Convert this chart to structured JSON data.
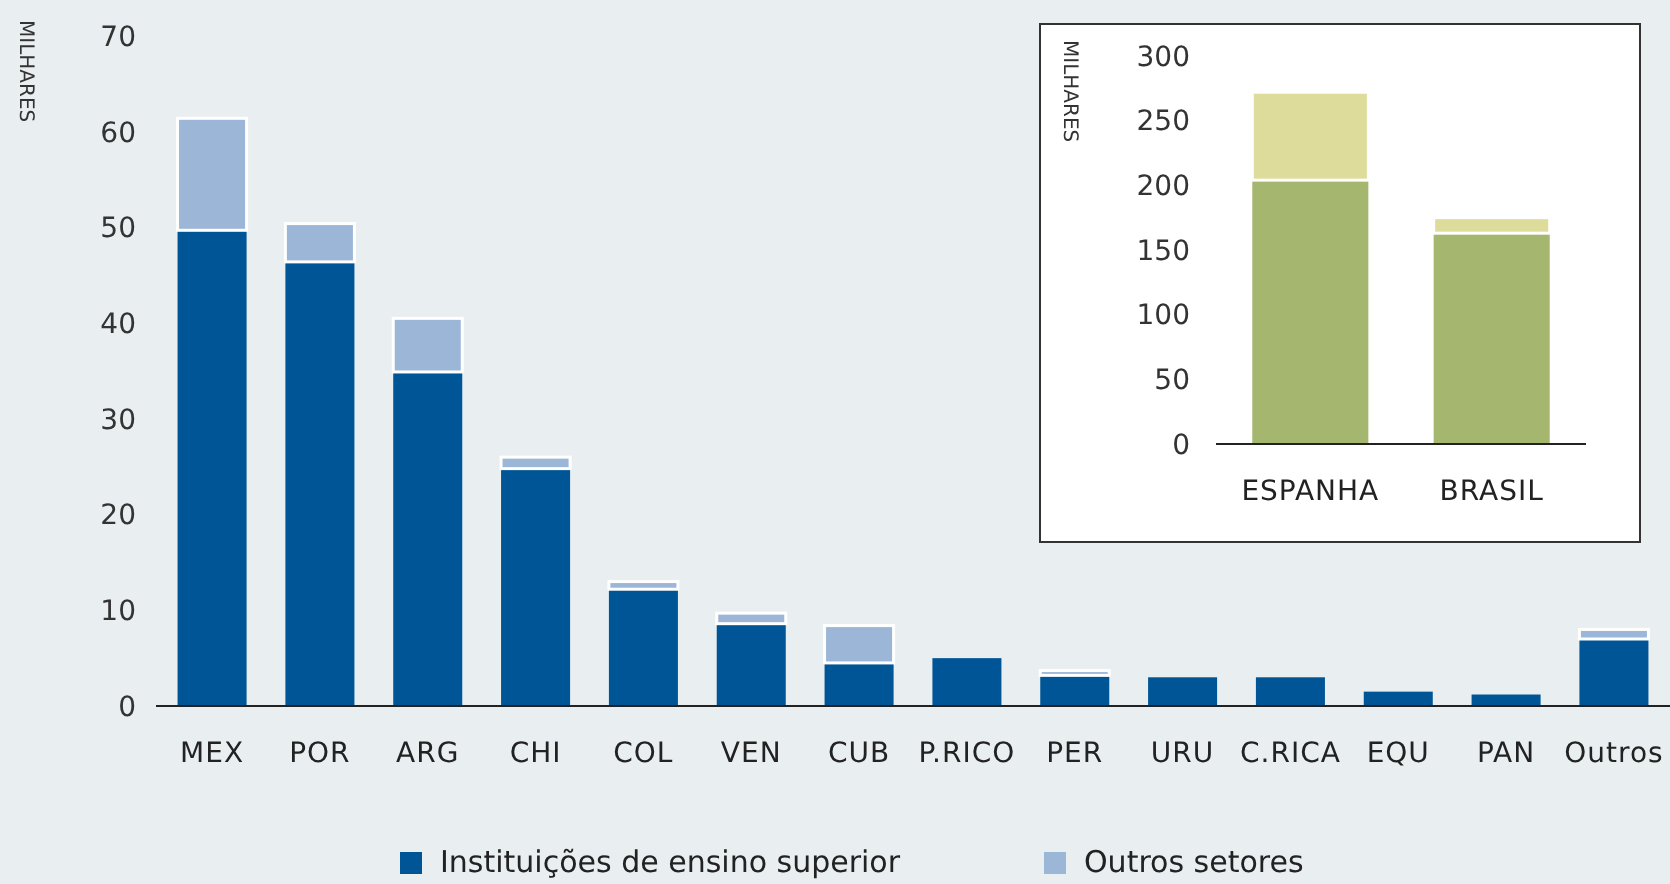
{
  "chart_data": [
    {
      "type": "bar",
      "stacked": true,
      "ylabel": "MILHARES",
      "categories": [
        "MEX",
        "POR",
        "ARG",
        "CHI",
        "COL",
        "VEN",
        "CUB",
        "P.RICO",
        "PER",
        "URU",
        "C.RICA",
        "EQU",
        "PAN",
        "Outros"
      ],
      "series": [
        {
          "name": "Instituições de ensino superior",
          "color": "#005596",
          "values": [
            49.7,
            46.4,
            34.9,
            24.8,
            12.2,
            8.6,
            4.5,
            5,
            3.2,
            3,
            3,
            1.5,
            1.2,
            7
          ]
        },
        {
          "name": "Outros setores",
          "color": "#9bb6d6",
          "values": [
            11.7,
            4,
            5.6,
            1.2,
            0.8,
            1.1,
            3.9,
            0,
            0.5,
            0,
            0,
            0,
            0,
            1
          ]
        }
      ],
      "ylim": [
        0,
        70
      ],
      "yticks": [
        0,
        10,
        20,
        30,
        40,
        50,
        60,
        70
      ],
      "legend": "bottom",
      "grid": false
    },
    {
      "type": "bar",
      "stacked": true,
      "ylabel": "MILHARES",
      "categories": [
        "ESPANHA",
        "BRASIL"
      ],
      "series": [
        {
          "color": "#a5b66f",
          "values": [
            204,
            163
          ]
        },
        {
          "color": "#dedc9a",
          "values": [
            68,
            12
          ]
        }
      ],
      "ylim": [
        0,
        300
      ],
      "yticks": [
        0,
        50,
        100,
        150,
        200,
        250,
        300
      ],
      "grid": false
    }
  ]
}
